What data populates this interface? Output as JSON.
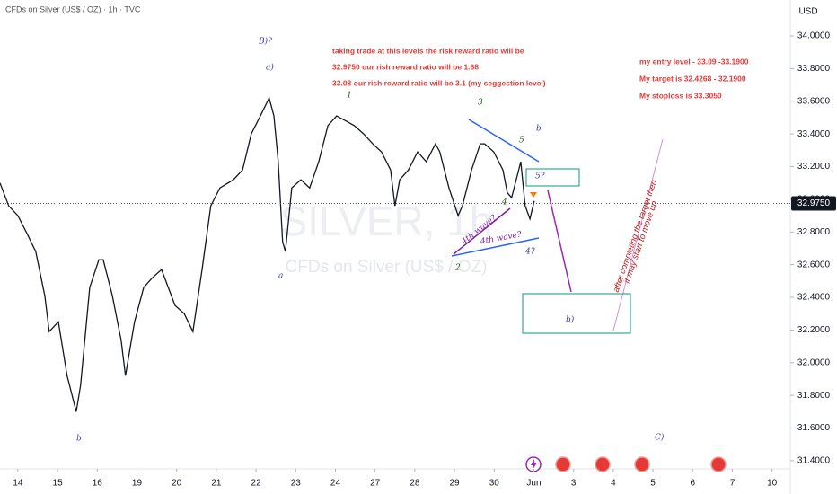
{
  "header": {
    "symbol": "CFDs on Silver (US$ / OZ) · 1h · TVC",
    "currency": "USD"
  },
  "watermark": {
    "ticker": "SILVER, 1h",
    "name": "CFDs on Silver (US$ / OZ)"
  },
  "chart_data": {
    "type": "line",
    "series": [
      {
        "name": "Silver",
        "color": "#131722",
        "x": [
          -0.45,
          -0.23,
          0,
          0.23,
          0.45,
          0.68,
          0.79,
          1.02,
          1.24,
          1.47,
          1.58,
          1.81,
          2.04,
          2.15,
          2.38,
          2.6,
          2.71,
          2.94,
          3.17,
          3.39,
          3.62,
          3.96,
          4.19,
          4.41,
          4.64,
          4.86,
          5.09,
          5.43,
          5.66,
          5.88,
          6.11,
          6.33,
          6.45,
          6.56,
          6.67,
          6.74,
          6.9,
          7.13,
          7.35,
          7.58,
          7.81,
          8.03,
          8.26,
          8.48,
          8.71,
          8.94,
          9.16,
          9.39,
          9.5,
          9.62,
          9.84,
          10.07,
          10.29,
          10.52,
          10.63,
          10.86,
          11.09,
          11.2,
          11.43,
          11.65,
          11.76,
          11.99,
          12.22,
          12.33,
          12.44,
          12.67,
          12.78,
          12.9,
          13.01
        ],
        "values": [
          33.1,
          32.96,
          32.9,
          32.79,
          32.68,
          32.41,
          32.19,
          32.25,
          31.92,
          31.7,
          31.86,
          32.46,
          32.63,
          32.63,
          32.41,
          32.14,
          31.92,
          32.25,
          32.46,
          32.52,
          32.57,
          32.35,
          32.3,
          32.19,
          32.57,
          32.96,
          33.07,
          33.12,
          33.18,
          33.4,
          33.51,
          33.62,
          33.51,
          33.23,
          32.74,
          32.68,
          33.07,
          33.12,
          33.07,
          33.23,
          33.45,
          33.51,
          33.48,
          33.45,
          33.4,
          33.34,
          33.29,
          33.18,
          32.96,
          33.12,
          33.18,
          33.29,
          33.23,
          33.34,
          33.29,
          33.07,
          32.9,
          32.96,
          33.18,
          33.34,
          33.34,
          33.29,
          33.18,
          33.04,
          33.01,
          33.23,
          32.96,
          32.88,
          32.99
        ]
      }
    ],
    "last_price": {
      "value": 32.975,
      "label": "32.9750"
    },
    "ylim": [
      31.35,
      34.22
    ],
    "yticks": [
      {
        "value": 31.4,
        "label": "31.4000"
      },
      {
        "value": 31.6,
        "label": "31.6000"
      },
      {
        "value": 31.8,
        "label": "31.8000"
      },
      {
        "value": 32.0,
        "label": "32.0000"
      },
      {
        "value": 32.2,
        "label": "32.2000"
      },
      {
        "value": 32.4,
        "label": "32.4000"
      },
      {
        "value": 32.6,
        "label": "32.6000"
      },
      {
        "value": 32.8,
        "label": "32.8000"
      },
      {
        "value": 33.0,
        "label": "33.0000"
      },
      {
        "value": 33.2,
        "label": "33.2000"
      },
      {
        "value": 33.4,
        "label": "33.4000"
      },
      {
        "value": 33.6,
        "label": "33.6000"
      },
      {
        "value": 33.8,
        "label": "33.8000"
      },
      {
        "value": 34.0,
        "label": "34.0000"
      }
    ],
    "xlim": [
      -0.45,
      19.46
    ],
    "xticks": [
      {
        "value": 0,
        "label": "14"
      },
      {
        "value": 1,
        "label": "15"
      },
      {
        "value": 2,
        "label": "16"
      },
      {
        "value": 3,
        "label": "19"
      },
      {
        "value": 4,
        "label": "20"
      },
      {
        "value": 5,
        "label": "21"
      },
      {
        "value": 6,
        "label": "22"
      },
      {
        "value": 7,
        "label": "23"
      },
      {
        "value": 8,
        "label": "24"
      },
      {
        "value": 9,
        "label": "27"
      },
      {
        "value": 10,
        "label": "28"
      },
      {
        "value": 11,
        "label": "29"
      },
      {
        "value": 12,
        "label": "30"
      },
      {
        "value": 13,
        "label": "Jun"
      },
      {
        "value": 14,
        "label": "3"
      },
      {
        "value": 15,
        "label": "4"
      },
      {
        "value": 16,
        "label": "5"
      },
      {
        "value": 17,
        "label": "6"
      },
      {
        "value": 18,
        "label": "7"
      },
      {
        "value": 19,
        "label": "10"
      }
    ]
  },
  "annotations": {
    "wave_labels": [
      "B)?",
      "a)",
      "1",
      "3",
      "b",
      "5",
      "5?",
      "4th wave?",
      "4th wave?",
      "4",
      "4?",
      "2",
      "a",
      "b",
      "b)",
      "C)"
    ],
    "trade_note": [
      "taking trade at this levels the risk reward ratio will be",
      "32.9750 our rish reward ratio will be 1.68",
      "33.08  our rish reward ratio will be 3.1 (my seggestion level)"
    ],
    "plan": [
      "my entry level - 33.09 -33.1900",
      "My target is 32.4268 - 32.1900",
      "My stoploss is 33.3050"
    ],
    "outlook": [
      "after completing the target then",
      "it may start to move up"
    ]
  }
}
